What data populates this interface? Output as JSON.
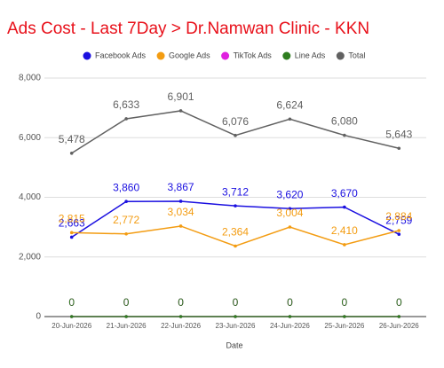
{
  "chart_data": {
    "type": "line",
    "title": "Ads Cost - Last 7Day > Dr.Namwan Clinic - KKN",
    "x_label": "Date",
    "categories": [
      "20-Jun-2026",
      "21-Jun-2026",
      "22-Jun-2026",
      "23-Jun-2026",
      "24-Jun-2026",
      "25-Jun-2026",
      "26-Jun-2026"
    ],
    "series": [
      {
        "name": "Facebook Ads",
        "color": "#1a0fe0",
        "values": [
          2663,
          3860,
          3867,
          3712,
          3620,
          3670,
          2759
        ],
        "value_labels": [
          "2,663",
          "3,860",
          "3,867",
          "3,712",
          "3,620",
          "3,670",
          "2,759"
        ]
      },
      {
        "name": "Google Ads",
        "color": "#f39c12",
        "values": [
          2815,
          2772,
          3034,
          2364,
          3004,
          2410,
          2884
        ],
        "value_labels": [
          "2,815",
          "2,772",
          "3,034",
          "2,364",
          "3,004",
          "2,410",
          "2,884"
        ]
      },
      {
        "name": "TikTok Ads",
        "color": "#e020e0",
        "values": [
          0,
          0,
          0,
          0,
          0,
          0,
          0
        ]
      },
      {
        "name": "Line Ads",
        "color": "#2e7d1f",
        "values": [
          0,
          0,
          0,
          0,
          0,
          0,
          0
        ]
      },
      {
        "name": "Total",
        "color": "#616161",
        "values": [
          5478,
          6633,
          6901,
          6076,
          6624,
          6080,
          5643
        ],
        "value_labels": [
          "5,478",
          "6,633",
          "6,901",
          "6,076",
          "6,624",
          "6,080",
          "5,643"
        ]
      }
    ],
    "ylim": [
      0,
      8000
    ],
    "yticks": [
      0,
      {
        "value": 2000,
        "label": "2,000"
      },
      {
        "value": 4000,
        "label": "4,000"
      },
      {
        "value": 6000,
        "label": "6,000"
      },
      {
        "value": 8000,
        "label": "8,000"
      }
    ],
    "grid": true,
    "legend": "top",
    "title_color": "#e8101a"
  }
}
